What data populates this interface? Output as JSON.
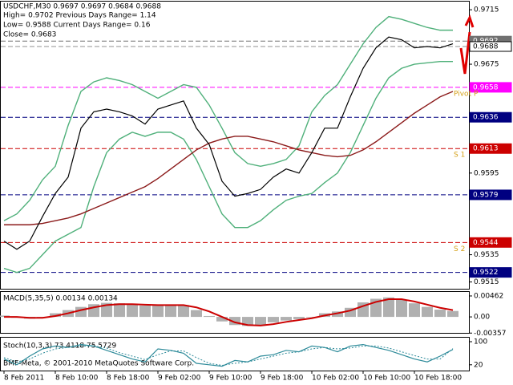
{
  "chart_data": {
    "type": "line",
    "title": "USDCHF,M30  0.9697 0.9697 0.9684 0.9688",
    "info_lines": [
      "High= 0.9702    Previous Days Range= 1.14",
      "Low= 0.9588    Current Days Range= 0.16",
      "Close= 0.9683"
    ],
    "categories": [
      "8 Feb 2011",
      null,
      null,
      null,
      "8 Feb 10:00",
      null,
      null,
      null,
      "8 Feb 18:00",
      null,
      null,
      null,
      "9 Feb 02:00",
      null,
      null,
      null,
      "9 Feb 10:00",
      null,
      null,
      null,
      "9 Feb 18:00",
      null,
      null,
      null,
      "10 Feb 02:00",
      null,
      null,
      null,
      "10 Feb 10:00",
      null,
      null,
      null,
      "10 Feb 18:00",
      null,
      null,
      null
    ],
    "series": [
      {
        "color": "#4fb07a",
        "values": [
          0.956,
          0.9565,
          0.9575,
          0.959,
          0.96,
          0.963,
          0.9655,
          0.9662,
          0.9665,
          0.9663,
          0.966,
          0.9655,
          0.965,
          0.9655,
          0.966,
          0.9658,
          0.9645,
          0.9628,
          0.961,
          0.9602,
          0.96,
          0.9602,
          0.9605,
          0.9615,
          0.964,
          0.9652,
          0.966,
          0.9675,
          0.969,
          0.9702,
          0.971,
          0.9708,
          0.9705,
          0.9702,
          0.97,
          0.97
        ]
      },
      {
        "color": "#4fb07a",
        "values": [
          0.9525,
          0.9522,
          0.9525,
          0.9535,
          0.9545,
          0.955,
          0.9555,
          0.9585,
          0.961,
          0.962,
          0.9625,
          0.9622,
          0.9625,
          0.9625,
          0.962,
          0.9605,
          0.9585,
          0.9565,
          0.9555,
          0.9555,
          0.956,
          0.9568,
          0.9575,
          0.9578,
          0.958,
          0.9588,
          0.9595,
          0.961,
          0.963,
          0.965,
          0.9665,
          0.9672,
          0.9675,
          0.9676,
          0.9677,
          0.9677
        ]
      },
      {
        "color": "#8b1a1a",
        "values": [
          0.9557,
          0.9557,
          0.9557,
          0.9558,
          0.956,
          0.9562,
          0.9565,
          0.9569,
          0.9573,
          0.9577,
          0.9581,
          0.9585,
          0.9591,
          0.9598,
          0.9605,
          0.9612,
          0.9617,
          0.962,
          0.9622,
          0.9622,
          0.962,
          0.9618,
          0.9615,
          0.9612,
          0.961,
          0.9608,
          0.9607,
          0.9608,
          0.9612,
          0.9618,
          0.9625,
          0.9632,
          0.9639,
          0.9645,
          0.9651,
          0.9655
        ]
      },
      {
        "color": "#000000",
        "values": [
          0.9545,
          0.9539,
          0.9545,
          0.9563,
          0.958,
          0.9592,
          0.9628,
          0.964,
          0.9642,
          0.964,
          0.9637,
          0.9631,
          0.9642,
          0.9645,
          0.9648,
          0.9628,
          0.9616,
          0.9589,
          0.9578,
          0.958,
          0.9583,
          0.9592,
          0.9598,
          0.9595,
          0.961,
          0.9628,
          0.9628,
          0.9651,
          0.9672,
          0.9687,
          0.9695,
          0.9693,
          0.9687,
          0.9688,
          0.9687,
          0.969
        ]
      }
    ],
    "ylim": [
      0.951,
      0.9721
    ],
    "yticks": [
      0.9715,
      0.9675,
      0.9595,
      0.9535,
      0.9515
    ],
    "levels": [
      {
        "value": 0.9692,
        "color": "#707070"
      },
      {
        "value": 0.9688,
        "color": "#ffffff"
      },
      {
        "value": 0.9658,
        "color": "#ff00ff",
        "name": "Pivot P"
      },
      {
        "value": 0.9636,
        "color": "#000080"
      },
      {
        "value": 0.9613,
        "color": "#cc0000",
        "name": "S 1"
      },
      {
        "value": 0.9579,
        "color": "#000080"
      },
      {
        "value": 0.9544,
        "color": "#cc0000",
        "name": "S 2"
      },
      {
        "value": 0.9522,
        "color": "#000080"
      }
    ],
    "macd": {
      "title": "MACD(5,35,5) 0.00134 0.00134",
      "ylim": [
        -0.0037,
        0.0055
      ],
      "yticks": [
        0.00462,
        {
          "value": 0,
          "label": "0.00"
        },
        -0.00357
      ],
      "histogram": {
        "color": "#b0b0b0",
        "values": [
          0.0003,
          -0.0002,
          -0.0004,
          0.0,
          0.0008,
          0.0015,
          0.0022,
          0.0028,
          0.0031,
          0.003,
          0.0028,
          0.0025,
          0.0026,
          0.0027,
          0.0026,
          0.0015,
          0.0002,
          -0.001,
          -0.0018,
          -0.002,
          -0.0018,
          -0.0012,
          -0.0008,
          -0.0005,
          0.0,
          0.0008,
          0.0012,
          0.002,
          0.0032,
          0.004,
          0.0043,
          0.0038,
          0.003,
          0.0022,
          0.0016,
          0.0013
        ]
      },
      "signal": {
        "color": "#cc0000",
        "values": [
          0.0,
          0.0,
          -0.0002,
          -0.0002,
          0.0002,
          0.0008,
          0.0015,
          0.0021,
          0.0026,
          0.0028,
          0.0028,
          0.0027,
          0.0026,
          0.0026,
          0.0026,
          0.0021,
          0.0012,
          0.0,
          -0.0012,
          -0.0018,
          -0.0019,
          -0.0016,
          -0.0011,
          -0.0007,
          -0.0003,
          0.0003,
          0.0008,
          0.0014,
          0.0024,
          0.0033,
          0.0039,
          0.0039,
          0.0034,
          0.0027,
          0.002,
          0.0015
        ]
      }
    },
    "stoch": {
      "title": "Stoch(10,3,3) 73.4118 75.5729",
      "ylim": [
        0,
        100
      ],
      "yticks": [
        100,
        20
      ],
      "main": {
        "color": "#2e8b9a",
        "values": [
          40,
          20,
          50,
          75,
          85,
          80,
          90,
          85,
          70,
          55,
          40,
          30,
          75,
          70,
          60,
          25,
          20,
          15,
          35,
          30,
          50,
          55,
          70,
          65,
          85,
          80,
          65,
          85,
          90,
          80,
          70,
          55,
          40,
          30,
          50,
          73
        ]
      },
      "signal": {
        "color": "#2e8b9a",
        "values": [
          45,
          30,
          40,
          60,
          75,
          80,
          85,
          85,
          78,
          62,
          50,
          38,
          55,
          68,
          68,
          45,
          25,
          18,
          25,
          30,
          40,
          50,
          60,
          65,
          75,
          80,
          75,
          78,
          85,
          85,
          78,
          65,
          52,
          40,
          40,
          76
        ]
      }
    },
    "copyright": "BMF-Meta, © 2001-2010 MetaQuotes Software Corp."
  }
}
